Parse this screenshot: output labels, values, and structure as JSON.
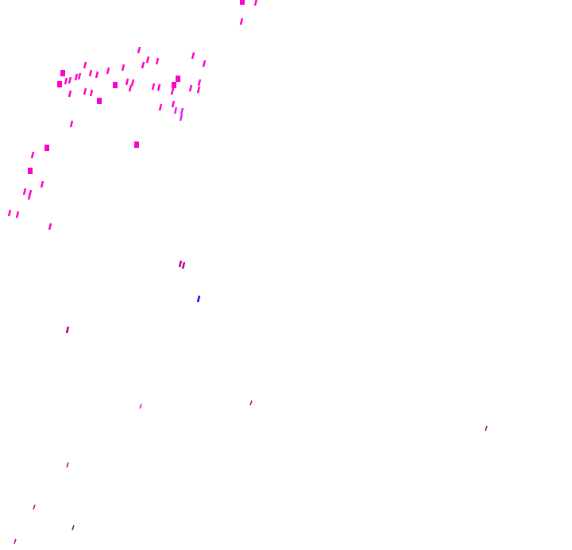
{
  "background_color": "#ffffff",
  "mark_colors": {
    "primary": "#ff00c8",
    "violet": "#e020ff",
    "blue": "#3000ff",
    "dark": "#8a0060",
    "deep": "#b0008a"
  }
}
